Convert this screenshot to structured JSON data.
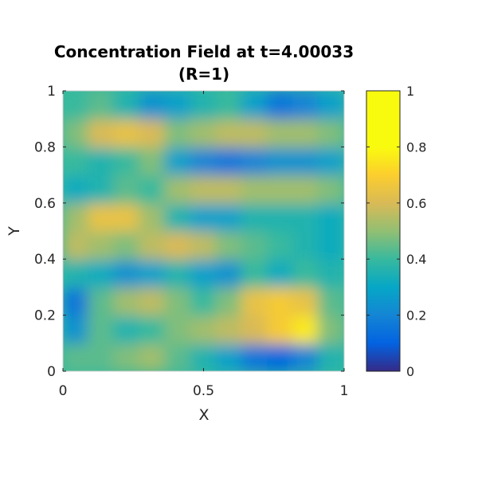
{
  "chart_data": {
    "type": "heatmap",
    "title": "Concentration Field at t=4.00033",
    "subtitle": "(R=1)",
    "xlabel": "X",
    "ylabel": "Y",
    "xlim": [
      0,
      1
    ],
    "ylim": [
      0,
      1
    ],
    "xticks": [
      {
        "value": 0,
        "label": "0"
      },
      {
        "value": 0.5,
        "label": "0.5"
      },
      {
        "value": 1,
        "label": "1"
      }
    ],
    "yticks": [
      {
        "value": 0,
        "label": "0"
      },
      {
        "value": 0.2,
        "label": "0.2"
      },
      {
        "value": 0.4,
        "label": "0.4"
      },
      {
        "value": 0.6,
        "label": "0.6"
      },
      {
        "value": 0.8,
        "label": "0.8"
      },
      {
        "value": 1,
        "label": "1"
      }
    ],
    "colorbar": {
      "colormap": "parula",
      "clim": [
        0,
        1
      ],
      "ticks": [
        {
          "value": 0,
          "label": "0"
        },
        {
          "value": 0.2,
          "label": "0.2"
        },
        {
          "value": 0.4,
          "label": "0.4"
        },
        {
          "value": 0.6,
          "label": "0.6"
        },
        {
          "value": 0.8,
          "label": "0.8"
        },
        {
          "value": 1,
          "label": "1"
        }
      ]
    },
    "field_description_rows": [
      {
        "y": 0.05,
        "values": [
          0.55,
          0.55,
          0.6,
          0.65,
          0.55,
          0.45,
          0.35,
          0.2,
          0.15,
          0.25,
          0.45
        ]
      },
      {
        "y": 0.15,
        "values": [
          0.3,
          0.55,
          0.45,
          0.5,
          0.6,
          0.65,
          0.7,
          0.75,
          0.85,
          0.95,
          0.6
        ]
      },
      {
        "y": 0.25,
        "values": [
          0.2,
          0.55,
          0.65,
          0.7,
          0.6,
          0.5,
          0.6,
          0.8,
          0.85,
          0.8,
          0.55
        ]
      },
      {
        "y": 0.35,
        "values": [
          0.45,
          0.4,
          0.3,
          0.35,
          0.45,
          0.35,
          0.3,
          0.5,
          0.4,
          0.5,
          0.45
        ]
      },
      {
        "y": 0.45,
        "values": [
          0.7,
          0.65,
          0.6,
          0.7,
          0.75,
          0.7,
          0.6,
          0.55,
          0.5,
          0.45,
          0.4
        ]
      },
      {
        "y": 0.55,
        "values": [
          0.65,
          0.8,
          0.8,
          0.65,
          0.45,
          0.35,
          0.35,
          0.45,
          0.45,
          0.45,
          0.4
        ]
      },
      {
        "y": 0.65,
        "values": [
          0.4,
          0.45,
          0.55,
          0.5,
          0.65,
          0.7,
          0.7,
          0.65,
          0.65,
          0.65,
          0.6
        ]
      },
      {
        "y": 0.75,
        "values": [
          0.5,
          0.45,
          0.5,
          0.6,
          0.35,
          0.25,
          0.2,
          0.25,
          0.3,
          0.3,
          0.35
        ]
      },
      {
        "y": 0.85,
        "values": [
          0.6,
          0.75,
          0.8,
          0.75,
          0.6,
          0.65,
          0.7,
          0.7,
          0.65,
          0.65,
          0.6
        ]
      },
      {
        "y": 0.95,
        "values": [
          0.5,
          0.55,
          0.45,
          0.3,
          0.35,
          0.45,
          0.5,
          0.35,
          0.2,
          0.25,
          0.35
        ]
      }
    ]
  }
}
